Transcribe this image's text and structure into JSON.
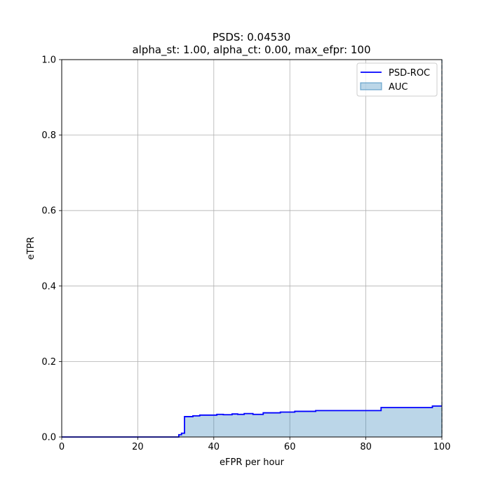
{
  "chart_data": {
    "type": "area",
    "title": "PSDS: 0.04530",
    "subtitle": "alpha_st: 1.00, alpha_ct: 0.00, max_efpr: 100",
    "xlabel": "eFPR per hour",
    "ylabel": "eTPR",
    "xlim": [
      0,
      100
    ],
    "ylim": [
      0,
      1.0
    ],
    "xticks": [
      "0",
      "20",
      "40",
      "60",
      "80",
      "100"
    ],
    "yticks": [
      "0.0",
      "0.2",
      "0.4",
      "0.6",
      "0.8",
      "1.0"
    ],
    "grid": true,
    "legend_position": "top-right",
    "series": [
      {
        "name": "PSD-ROC",
        "color": "#0000ff",
        "step": true,
        "x": [
          0,
          30.8,
          31.5,
          32.3,
          34.5,
          36.3,
          40.8,
          42.5,
          44.8,
          46.3,
          48.0,
          50.3,
          53.0,
          57.5,
          61.3,
          66.8,
          73.3,
          84.0,
          97.5,
          100
        ],
        "y": [
          0.0,
          0.006,
          0.01,
          0.054,
          0.056,
          0.058,
          0.06,
          0.059,
          0.061,
          0.06,
          0.062,
          0.06,
          0.064,
          0.066,
          0.068,
          0.07,
          0.07,
          0.078,
          0.082,
          0.082
        ]
      },
      {
        "name": "AUC",
        "color": "#1f77b4",
        "fill_opacity": 0.3,
        "type": "area"
      }
    ],
    "annotations": [
      {
        "type": "vline",
        "x": 100,
        "style": "dashed",
        "color": "#1f77b4"
      }
    ]
  }
}
